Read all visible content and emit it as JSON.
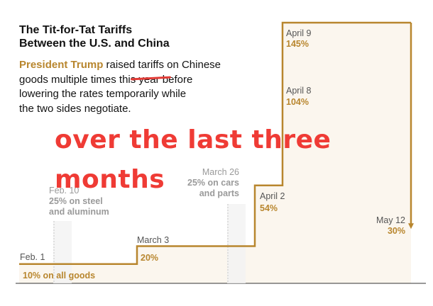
{
  "header": {
    "title_line1": "The Tit-for-Tat Tariffs",
    "title_line2": "Between the U.S. and China",
    "intro_who": "President Trump",
    "intro_line1_rest": " raised tariffs on Chinese",
    "intro_line2_pre": "goods multiple times thi",
    "intro_line2_struck": "s year b",
    "intro_line2_post": "efore",
    "intro_line3": "lowering the rates temporarily while",
    "intro_line4": "the two sides negotiate."
  },
  "annotation": {
    "line1": "over the last three",
    "line2": "months",
    "color": "#ef3b35"
  },
  "colors": {
    "accent": "#b8862e",
    "step_fill": "#fbf6ee",
    "muted_text": "#9a9a9a",
    "dark_text": "#555555"
  },
  "chart_data": {
    "type": "step",
    "title": "The Tit-for-Tat Tariffs Between the U.S. and China",
    "unit": "%",
    "ylim": [
      0,
      145
    ],
    "steps": [
      {
        "date": "Feb. 1",
        "value": 10,
        "value_label": "10% on all goods"
      },
      {
        "date": "March 3",
        "value": 20,
        "value_label": "20%"
      },
      {
        "date": "April 2",
        "value": 54,
        "value_label": "54%"
      },
      {
        "date": "April 8",
        "value": 104,
        "value_label": "104%"
      },
      {
        "date": "April 9",
        "value": 145,
        "value_label": "145%"
      },
      {
        "date": "May 12",
        "value": 30,
        "value_label": "30%"
      }
    ],
    "sector_events": [
      {
        "date": "Feb. 10",
        "label_line1": "25% on steel",
        "label_line2": "and aluminum"
      },
      {
        "date": "March 26",
        "label_line1": "25% on cars",
        "label_line2": "and parts"
      }
    ]
  }
}
